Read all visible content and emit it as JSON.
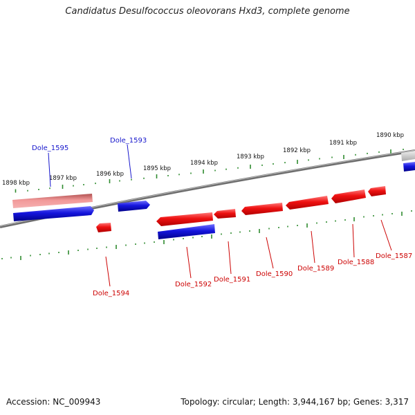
{
  "title": "Candidatus Desulfococcus oleovorans Hxd3, complete genome",
  "footer": {
    "accession": "Accession: NC_009943",
    "summary": "Topology: circular; Length: 3,944,167 bp; Genes: 3,317"
  },
  "colors": {
    "forward_gene": "#ee1111",
    "reverse_gene": "#1515dd",
    "other_feature": "#e05555",
    "ticks": "#2e8b2e",
    "backbone": "#7a7a7a",
    "label_blue": "#1515cc",
    "label_red": "#cc0000"
  },
  "scale_labels": [
    "1898 kbp",
    "1897 kbp",
    "1896 kbp",
    "1895 kbp",
    "1894 kbp",
    "1893 kbp",
    "1892 kbp",
    "1891 kbp",
    "1890 kbp"
  ],
  "gene_labels_outer": [
    "Dole_1595",
    "Dole_1593"
  ],
  "gene_labels_inner": [
    "Dole_1594",
    "Dole_1592",
    "Dole_1591",
    "Dole_1590",
    "Dole_1589",
    "Dole_1588",
    "Dole_1587"
  ]
}
